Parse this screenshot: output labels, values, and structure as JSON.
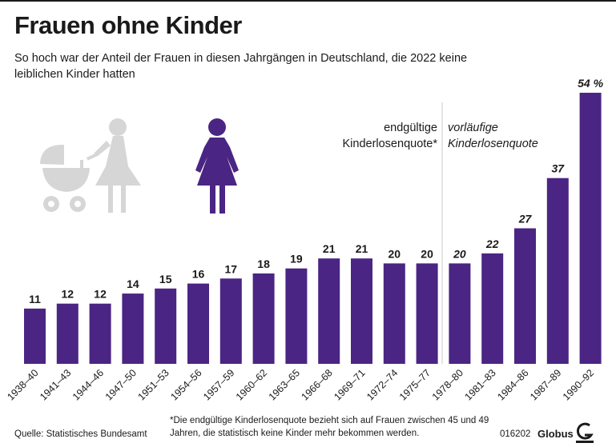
{
  "header": {
    "title": "Frauen ohne Kinder",
    "subtitle": "So hoch war der Anteil der Frauen in diesen Jahrgängen in Deutschland, die 2022 keine leiblichen Kinder hatten"
  },
  "legend": {
    "final_label": "endgültige Kinderlosenquote*",
    "preliminary_label": "vorläufige Kinderlosenquote"
  },
  "icons": {
    "mother": "mother-with-pram-icon",
    "woman": "woman-icon"
  },
  "colors": {
    "bar": "#4a2583",
    "icon_grey": "#d6d6d6",
    "divider": "#c8c8c8"
  },
  "chart_data": {
    "type": "bar",
    "categories": [
      "1938–40",
      "1941–43",
      "1944–46",
      "1947–50",
      "1951–53",
      "1954–56",
      "1957–59",
      "1960–62",
      "1963–65",
      "1966–68",
      "1969–71",
      "1972–74",
      "1975–77",
      "1978–80",
      "1981–83",
      "1984–86",
      "1987–89",
      "1990–92"
    ],
    "values": [
      11,
      12,
      12,
      14,
      15,
      16,
      17,
      18,
      19,
      21,
      21,
      20,
      20,
      20,
      22,
      27,
      37,
      54
    ],
    "value_labels": [
      "11",
      "12",
      "12",
      "14",
      "15",
      "16",
      "17",
      "18",
      "19",
      "21",
      "21",
      "20",
      "20",
      "20",
      "22",
      "27",
      "37",
      "54 %"
    ],
    "final_count": 13,
    "unit": "%",
    "ylim": [
      0,
      54
    ],
    "grid": false,
    "xlabel": "",
    "ylabel": ""
  },
  "footer": {
    "source": "Quelle: Statistisches Bundesamt",
    "footnote": "*Die endgültige Kinderlosenquote bezieht sich auf Frauen zwischen 45 und 49 Jahren, die statistisch keine Kinder mehr bekommen werden.",
    "code": "016202",
    "brand": "Globus"
  }
}
